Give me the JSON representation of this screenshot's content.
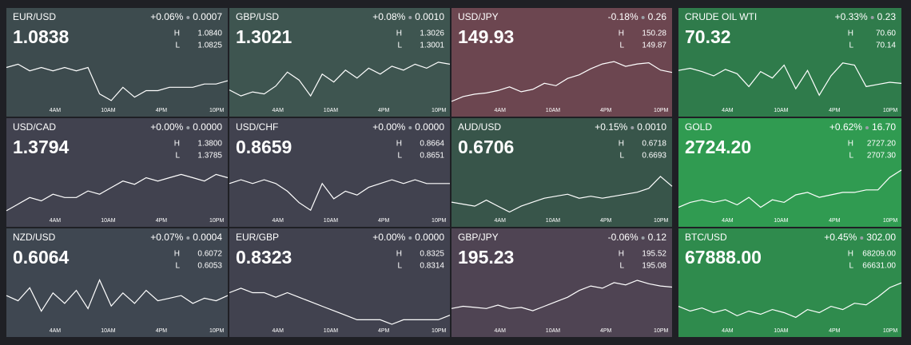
{
  "labels": {
    "high": "H",
    "low": "L"
  },
  "time_labels": [
    "4AM",
    "10AM",
    "4PM",
    "10PM"
  ],
  "tiles": [
    {
      "name": "EUR/USD",
      "change": "+0.06%",
      "change_abs": "0.0007",
      "price": "1.0838",
      "high": "1.0840",
      "low": "1.0825",
      "color": "#3d4b4e",
      "sparkline": [
        1.0836,
        1.0837,
        1.0835,
        1.0836,
        1.0835,
        1.0836,
        1.0835,
        1.0836,
        1.0828,
        1.0826,
        1.083,
        1.0827,
        1.0829,
        1.0829,
        1.083,
        1.083,
        1.083,
        1.0831,
        1.0831,
        1.0832
      ]
    },
    {
      "name": "GBP/USD",
      "change": "+0.08%",
      "change_abs": "0.0010",
      "price": "1.3021",
      "high": "1.3026",
      "low": "1.3001",
      "color": "#3e5550",
      "sparkline": [
        1.3008,
        1.3005,
        1.3007,
        1.3006,
        1.301,
        1.3017,
        1.3013,
        1.3005,
        1.3016,
        1.3012,
        1.3018,
        1.3014,
        1.3019,
        1.3016,
        1.302,
        1.3018,
        1.3021,
        1.3019,
        1.3022,
        1.3021
      ]
    },
    {
      "name": "USD/JPY",
      "change": "-0.18%",
      "change_abs": "0.26",
      "price": "149.93",
      "high": "150.28",
      "low": "149.87",
      "color": "#6c4650",
      "sparkline": [
        149.89,
        149.93,
        149.95,
        149.96,
        149.98,
        150.01,
        149.97,
        149.99,
        150.04,
        150.02,
        150.08,
        150.11,
        150.16,
        150.2,
        150.22,
        150.18,
        150.2,
        150.21,
        150.15,
        150.13
      ]
    },
    {
      "name": "CRUDE OIL WTI",
      "change": "+0.33%",
      "change_abs": "0.23",
      "price": "70.32",
      "high": "70.60",
      "low": "70.14",
      "color": "#2f7b4b",
      "sparkline": [
        70.45,
        70.47,
        70.44,
        70.4,
        70.46,
        70.42,
        70.3,
        70.44,
        70.38,
        70.5,
        70.28,
        70.45,
        70.22,
        70.4,
        70.52,
        70.5,
        70.3,
        70.32,
        70.34,
        70.33
      ]
    },
    {
      "name": "USD/CAD",
      "change": "+0.00%",
      "change_abs": "0.0000",
      "price": "1.3794",
      "high": "1.3800",
      "low": "1.3785",
      "color": "#41424f",
      "sparkline": [
        1.3786,
        1.3788,
        1.379,
        1.3789,
        1.3791,
        1.379,
        1.379,
        1.3792,
        1.3791,
        1.3793,
        1.3795,
        1.3794,
        1.3796,
        1.3795,
        1.3796,
        1.3797,
        1.3796,
        1.3795,
        1.3797,
        1.3796
      ]
    },
    {
      "name": "USD/CHF",
      "change": "+0.00%",
      "change_abs": "0.0000",
      "price": "0.8659",
      "high": "0.8664",
      "low": "0.8651",
      "color": "#41424f",
      "sparkline": [
        0.8659,
        0.866,
        0.8659,
        0.866,
        0.8659,
        0.8657,
        0.8654,
        0.8652,
        0.8659,
        0.8655,
        0.8657,
        0.8656,
        0.8658,
        0.8659,
        0.866,
        0.8659,
        0.866,
        0.8659,
        0.8659,
        0.8659
      ]
    },
    {
      "name": "AUD/USD",
      "change": "+0.15%",
      "change_abs": "0.0010",
      "price": "0.6706",
      "high": "0.6718",
      "low": "0.6693",
      "color": "#38554a",
      "sparkline": [
        0.6699,
        0.6698,
        0.6697,
        0.67,
        0.6697,
        0.6694,
        0.6697,
        0.6699,
        0.6701,
        0.6702,
        0.6703,
        0.6701,
        0.6702,
        0.6701,
        0.6702,
        0.6703,
        0.6704,
        0.6706,
        0.6712,
        0.6707
      ]
    },
    {
      "name": "GOLD",
      "change": "+0.62%",
      "change_abs": "16.70",
      "price": "2724.20",
      "high": "2727.20",
      "low": "2707.30",
      "color": "#309b51",
      "sparkline": [
        2710,
        2712,
        2713,
        2712,
        2713,
        2711,
        2714,
        2710,
        2713,
        2712,
        2715,
        2716,
        2714,
        2715,
        2716,
        2716,
        2717,
        2717,
        2722,
        2725
      ]
    },
    {
      "name": "NZD/USD",
      "change": "+0.07%",
      "change_abs": "0.0004",
      "price": "0.6064",
      "high": "0.6072",
      "low": "0.6053",
      "color": "#3f4751",
      "sparkline": [
        0.6064,
        0.6062,
        0.6067,
        0.6058,
        0.6065,
        0.6061,
        0.6066,
        0.6059,
        0.607,
        0.606,
        0.6065,
        0.6061,
        0.6066,
        0.6062,
        0.6063,
        0.6064,
        0.6061,
        0.6063,
        0.6062,
        0.6064
      ]
    },
    {
      "name": "EUR/GBP",
      "change": "+0.00%",
      "change_abs": "0.0000",
      "price": "0.8323",
      "high": "0.8325",
      "low": "0.8314",
      "color": "#41424f",
      "sparkline": [
        0.8321,
        0.8322,
        0.8321,
        0.8321,
        0.832,
        0.8321,
        0.832,
        0.8319,
        0.8318,
        0.8317,
        0.8316,
        0.8315,
        0.8315,
        0.8315,
        0.8314,
        0.8315,
        0.8315,
        0.8315,
        0.8315,
        0.8316
      ]
    },
    {
      "name": "GBP/JPY",
      "change": "-0.06%",
      "change_abs": "0.12",
      "price": "195.23",
      "high": "195.52",
      "low": "195.08",
      "color": "#4f4453",
      "sparkline": [
        195.22,
        195.24,
        195.23,
        195.22,
        195.25,
        195.22,
        195.23,
        195.2,
        195.24,
        195.28,
        195.32,
        195.38,
        195.42,
        195.4,
        195.45,
        195.43,
        195.47,
        195.44,
        195.42,
        195.41
      ]
    },
    {
      "name": "BTC/USD",
      "change": "+0.45%",
      "change_abs": "302.00",
      "price": "67888.00",
      "high": "68209.00",
      "low": "66631.00",
      "color": "#2f8b4d",
      "sparkline": [
        67200,
        67050,
        67150,
        67000,
        67100,
        66900,
        67050,
        66950,
        67100,
        67000,
        66850,
        67100,
        67000,
        67200,
        67100,
        67300,
        67250,
        67500,
        67800,
        67950
      ]
    }
  ]
}
